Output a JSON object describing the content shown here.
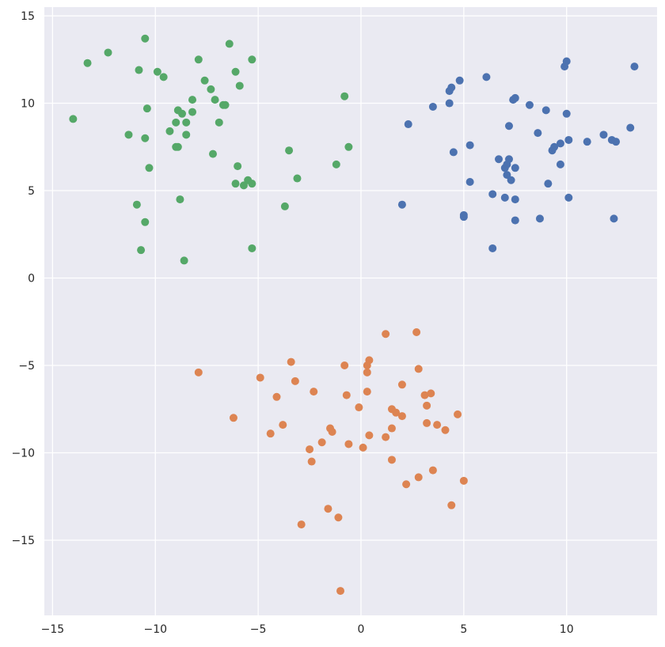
{
  "chart_data": {
    "type": "scatter",
    "title": "",
    "xlabel": "",
    "ylabel": "",
    "xlim": [
      -15.4,
      14.4
    ],
    "ylim": [
      -19.3,
      15.5
    ],
    "grid": true,
    "legend": "none",
    "style": {
      "background": "#eaeaf2",
      "grid_color": "#ffffff"
    },
    "xticks": [
      -15,
      -10,
      -5,
      0,
      5,
      10
    ],
    "xtick_labels": [
      "−15",
      "−10",
      "−5",
      "0",
      "5",
      "10"
    ],
    "yticks": [
      15,
      10,
      5,
      0,
      -5,
      -10,
      -15
    ],
    "ytick_labels": [
      "15",
      "10",
      "5",
      "0",
      "−5",
      "−10",
      "−15"
    ],
    "series": [
      {
        "color": "#4c72b0",
        "points": [
          [
            13.3,
            12.1
          ],
          [
            10.0,
            12.4
          ],
          [
            9.9,
            12.1
          ],
          [
            6.1,
            11.5
          ],
          [
            4.8,
            11.3
          ],
          [
            4.4,
            10.9
          ],
          [
            4.3,
            10.7
          ],
          [
            7.5,
            10.3
          ],
          [
            7.4,
            10.2
          ],
          [
            4.3,
            10.0
          ],
          [
            3.5,
            9.8
          ],
          [
            8.2,
            9.9
          ],
          [
            9.0,
            9.6
          ],
          [
            10.0,
            9.4
          ],
          [
            2.3,
            8.8
          ],
          [
            7.2,
            8.7
          ],
          [
            8.6,
            8.3
          ],
          [
            11.8,
            8.2
          ],
          [
            13.1,
            8.6
          ],
          [
            10.1,
            7.9
          ],
          [
            11.0,
            7.8
          ],
          [
            12.2,
            7.9
          ],
          [
            12.4,
            7.8
          ],
          [
            9.7,
            7.7
          ],
          [
            9.4,
            7.5
          ],
          [
            9.3,
            7.3
          ],
          [
            5.3,
            7.6
          ],
          [
            4.5,
            7.2
          ],
          [
            6.7,
            6.8
          ],
          [
            7.2,
            6.8
          ],
          [
            7.1,
            6.5
          ],
          [
            7.0,
            6.3
          ],
          [
            7.5,
            6.3
          ],
          [
            9.7,
            6.5
          ],
          [
            7.1,
            5.9
          ],
          [
            7.3,
            5.6
          ],
          [
            5.3,
            5.5
          ],
          [
            9.1,
            5.4
          ],
          [
            6.4,
            4.8
          ],
          [
            7.0,
            4.6
          ],
          [
            7.5,
            4.5
          ],
          [
            10.1,
            4.6
          ],
          [
            2.0,
            4.2
          ],
          [
            5.0,
            3.6
          ],
          [
            5.0,
            3.5
          ],
          [
            7.5,
            3.3
          ],
          [
            8.7,
            3.4
          ],
          [
            12.3,
            3.4
          ],
          [
            6.4,
            1.7
          ]
        ]
      },
      {
        "color": "#dd8452",
        "points": [
          [
            2.7,
            -3.1
          ],
          [
            1.2,
            -3.2
          ],
          [
            -3.4,
            -4.8
          ],
          [
            0.4,
            -4.7
          ],
          [
            -0.8,
            -5.0
          ],
          [
            0.3,
            -5.0
          ],
          [
            -7.9,
            -5.4
          ],
          [
            0.3,
            -5.4
          ],
          [
            2.8,
            -5.2
          ],
          [
            -4.9,
            -5.7
          ],
          [
            -3.2,
            -5.9
          ],
          [
            2.0,
            -6.1
          ],
          [
            -2.3,
            -6.5
          ],
          [
            0.3,
            -6.5
          ],
          [
            3.4,
            -6.6
          ],
          [
            -4.1,
            -6.8
          ],
          [
            -0.7,
            -6.7
          ],
          [
            3.1,
            -6.7
          ],
          [
            3.2,
            -7.3
          ],
          [
            -0.1,
            -7.4
          ],
          [
            1.5,
            -7.5
          ],
          [
            1.7,
            -7.7
          ],
          [
            2.0,
            -7.9
          ],
          [
            4.7,
            -7.8
          ],
          [
            -6.2,
            -8.0
          ],
          [
            -3.8,
            -8.4
          ],
          [
            3.2,
            -8.3
          ],
          [
            3.7,
            -8.4
          ],
          [
            -1.5,
            -8.6
          ],
          [
            -1.4,
            -8.8
          ],
          [
            1.5,
            -8.6
          ],
          [
            4.1,
            -8.7
          ],
          [
            -4.4,
            -8.9
          ],
          [
            0.4,
            -9.0
          ],
          [
            1.2,
            -9.1
          ],
          [
            -1.9,
            -9.4
          ],
          [
            -0.6,
            -9.5
          ],
          [
            0.1,
            -9.7
          ],
          [
            -2.5,
            -9.8
          ],
          [
            -2.4,
            -10.5
          ],
          [
            1.5,
            -10.4
          ],
          [
            3.5,
            -11.0
          ],
          [
            2.8,
            -11.4
          ],
          [
            5.0,
            -11.6
          ],
          [
            2.2,
            -11.8
          ],
          [
            4.4,
            -13.0
          ],
          [
            -1.6,
            -13.2
          ],
          [
            -1.1,
            -13.7
          ],
          [
            -2.9,
            -14.1
          ],
          [
            -1.0,
            -17.9
          ]
        ]
      },
      {
        "color": "#55a868",
        "points": [
          [
            -10.5,
            13.7
          ],
          [
            -6.4,
            13.4
          ],
          [
            -12.3,
            12.9
          ],
          [
            -13.3,
            12.3
          ],
          [
            -7.9,
            12.5
          ],
          [
            -5.3,
            12.5
          ],
          [
            -10.8,
            11.9
          ],
          [
            -9.9,
            11.8
          ],
          [
            -6.1,
            11.8
          ],
          [
            -9.6,
            11.5
          ],
          [
            -7.6,
            11.3
          ],
          [
            -5.9,
            11.0
          ],
          [
            -7.3,
            10.8
          ],
          [
            -8.2,
            10.2
          ],
          [
            -7.1,
            10.2
          ],
          [
            -0.8,
            10.4
          ],
          [
            -6.7,
            9.9
          ],
          [
            -6.6,
            9.9
          ],
          [
            -10.4,
            9.7
          ],
          [
            -8.9,
            9.6
          ],
          [
            -8.2,
            9.5
          ],
          [
            -8.7,
            9.4
          ],
          [
            -14.0,
            9.1
          ],
          [
            -9.0,
            8.9
          ],
          [
            -8.5,
            8.9
          ],
          [
            -6.9,
            8.9
          ],
          [
            -9.3,
            8.4
          ],
          [
            -8.5,
            8.2
          ],
          [
            -11.3,
            8.2
          ],
          [
            -10.5,
            8.0
          ],
          [
            -8.9,
            7.5
          ],
          [
            -9.0,
            7.5
          ],
          [
            -0.6,
            7.5
          ],
          [
            -3.5,
            7.3
          ],
          [
            -7.2,
            7.1
          ],
          [
            -1.2,
            6.5
          ],
          [
            -10.3,
            6.3
          ],
          [
            -6.0,
            6.4
          ],
          [
            -3.1,
            5.7
          ],
          [
            -5.5,
            5.6
          ],
          [
            -6.1,
            5.4
          ],
          [
            -5.7,
            5.3
          ],
          [
            -5.3,
            5.4
          ],
          [
            -8.8,
            4.5
          ],
          [
            -10.9,
            4.2
          ],
          [
            -3.7,
            4.1
          ],
          [
            -10.5,
            3.2
          ],
          [
            -10.7,
            1.6
          ],
          [
            -5.3,
            1.7
          ],
          [
            -8.6,
            1.0
          ]
        ]
      }
    ]
  }
}
